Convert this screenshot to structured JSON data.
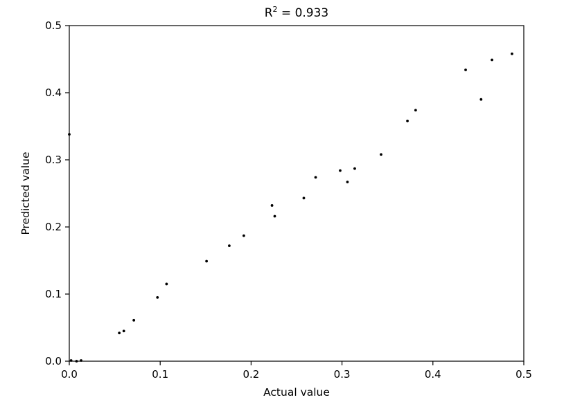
{
  "chart_data": {
    "type": "scatter",
    "title": {
      "base": "R",
      "sup": "2",
      "rest": " = 0.933"
    },
    "xlabel": "Actual value",
    "ylabel": "Predicted value",
    "xlim": [
      0.0,
      0.5
    ],
    "ylim": [
      0.0,
      0.5
    ],
    "xticks": [
      0.0,
      0.1,
      0.2,
      0.3,
      0.4,
      0.5
    ],
    "yticks": [
      0.0,
      0.1,
      0.2,
      0.3,
      0.4,
      0.5
    ],
    "xtick_labels": [
      "0.0",
      "0.1",
      "0.2",
      "0.3",
      "0.4",
      "0.5"
    ],
    "ytick_labels": [
      "0.0",
      "0.1",
      "0.2",
      "0.3",
      "0.4",
      "0.5"
    ],
    "grid": false,
    "legend": "none",
    "marker_color": "#000000",
    "marker_radius": 1.9,
    "axis_color": "#000000",
    "points": [
      [
        0.0,
        0.338
      ],
      [
        0.002,
        0.001
      ],
      [
        0.008,
        0.0
      ],
      [
        0.013,
        0.001
      ],
      [
        0.055,
        0.042
      ],
      [
        0.06,
        0.045
      ],
      [
        0.071,
        0.061
      ],
      [
        0.097,
        0.095
      ],
      [
        0.107,
        0.115
      ],
      [
        0.151,
        0.149
      ],
      [
        0.176,
        0.172
      ],
      [
        0.192,
        0.187
      ],
      [
        0.223,
        0.232
      ],
      [
        0.226,
        0.216
      ],
      [
        0.258,
        0.243
      ],
      [
        0.271,
        0.274
      ],
      [
        0.298,
        0.284
      ],
      [
        0.306,
        0.267
      ],
      [
        0.314,
        0.287
      ],
      [
        0.343,
        0.308
      ],
      [
        0.372,
        0.358
      ],
      [
        0.381,
        0.374
      ],
      [
        0.436,
        0.434
      ],
      [
        0.453,
        0.39
      ],
      [
        0.465,
        0.449
      ],
      [
        0.487,
        0.458
      ]
    ]
  }
}
